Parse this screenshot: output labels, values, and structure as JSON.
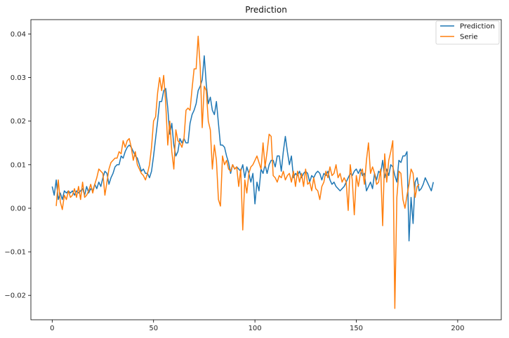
{
  "chart_data": {
    "type": "line",
    "title": "Prediction",
    "xlabel": "",
    "ylabel": "",
    "xlim": [
      -10.5,
      221.5
    ],
    "ylim": [
      -0.0256,
      0.0433
    ],
    "xticks": [
      0,
      50,
      100,
      150,
      200
    ],
    "yticks": [
      -0.02,
      -0.01,
      0.0,
      0.01,
      0.02,
      0.03,
      0.04
    ],
    "xtick_labels": [
      "0",
      "50",
      "100",
      "150",
      "200"
    ],
    "ytick_labels": [
      "−0.02",
      "−0.01",
      "0.00",
      "0.01",
      "0.02",
      "0.03",
      "0.04"
    ],
    "grid": false,
    "legend_position": "top-right",
    "series": [
      {
        "name": "Prediction",
        "color": "#1f77b4",
        "x_start": 0,
        "values": [
          0.005,
          0.003,
          0.0065,
          0.002,
          0.0035,
          0.002,
          0.004,
          0.0035,
          0.004,
          0.0035,
          0.004,
          0.003,
          0.004,
          0.0035,
          0.004,
          0.0045,
          0.003,
          0.005,
          0.0035,
          0.0045,
          0.004,
          0.0055,
          0.0045,
          0.006,
          0.005,
          0.007,
          0.0085,
          0.008,
          0.0055,
          0.007,
          0.008,
          0.0095,
          0.01,
          0.01,
          0.012,
          0.0115,
          0.013,
          0.014,
          0.0145,
          0.014,
          0.013,
          0.012,
          0.0115,
          0.01,
          0.0085,
          0.009,
          0.008,
          0.008,
          0.007,
          0.0085,
          0.012,
          0.016,
          0.02,
          0.0245,
          0.0245,
          0.027,
          0.0275,
          0.023,
          0.017,
          0.0195,
          0.0145,
          0.012,
          0.013,
          0.016,
          0.015,
          0.016,
          0.015,
          0.015,
          0.0195,
          0.0215,
          0.0225,
          0.024,
          0.027,
          0.028,
          0.0295,
          0.035,
          0.0285,
          0.024,
          0.0255,
          0.0225,
          0.0215,
          0.0245,
          0.0195,
          0.0145,
          0.0145,
          0.014,
          0.012,
          0.0105,
          0.008,
          0.01,
          0.009,
          0.0095,
          0.009,
          0.0085,
          0.01,
          0.007,
          0.0095,
          0.008,
          0.006,
          0.008,
          0.001,
          0.006,
          0.004,
          0.009,
          0.008,
          0.01,
          0.008,
          0.01,
          0.011,
          0.011,
          0.0095,
          0.012,
          0.012,
          0.0085,
          0.013,
          0.0165,
          0.013,
          0.01,
          0.012,
          0.007,
          0.008,
          0.0075,
          0.0085,
          0.007,
          0.008,
          0.0085,
          0.008,
          0.006,
          0.0075,
          0.007,
          0.008,
          0.0085,
          0.008,
          0.0065,
          0.008,
          0.0075,
          0.0085,
          0.0065,
          0.0055,
          0.006,
          0.005,
          0.0045,
          0.004,
          0.0045,
          0.005,
          0.006,
          0.007,
          0.008,
          0.0075,
          0.0085,
          0.009,
          0.008,
          0.009,
          0.0075,
          0.008,
          0.004,
          0.005,
          0.006,
          0.0045,
          0.008,
          0.0065,
          0.0085,
          0.008,
          0.011,
          0.007,
          0.009,
          0.0075,
          0.01,
          0.0095,
          0.0075,
          0.006,
          0.011,
          0.0105,
          0.012,
          0.012,
          0.013,
          -0.0075,
          0.0025,
          -0.0035,
          0.006,
          0.007,
          0.004,
          0.0045,
          0.0055,
          0.007,
          0.006,
          0.005,
          0.004,
          0.006
        ]
      },
      {
        "name": "Serie",
        "color": "#ff7f0e",
        "x_start": 2,
        "values": [
          0.0005,
          0.0065,
          0.0015,
          -0.0003,
          0.003,
          0.002,
          0.004,
          0.0025,
          0.003,
          0.0045,
          0.0025,
          0.005,
          0.002,
          0.006,
          0.0025,
          0.003,
          0.004,
          0.0055,
          0.0035,
          0.0055,
          0.007,
          0.009,
          0.0085,
          0.008,
          0.003,
          0.006,
          0.009,
          0.0105,
          0.011,
          0.0115,
          0.0115,
          0.013,
          0.0125,
          0.0155,
          0.014,
          0.0155,
          0.016,
          0.014,
          0.011,
          0.013,
          0.01,
          0.009,
          0.008,
          0.0075,
          0.0065,
          0.008,
          0.01,
          0.014,
          0.02,
          0.021,
          0.0265,
          0.03,
          0.027,
          0.0305,
          0.024,
          0.0145,
          0.02,
          0.013,
          0.009,
          0.018,
          0.0155,
          0.015,
          0.014,
          0.016,
          0.0225,
          0.023,
          0.0225,
          0.0275,
          0.032,
          0.032,
          0.0395,
          0.0325,
          0.0185,
          0.028,
          0.027,
          0.02,
          0.018,
          0.009,
          0.0145,
          0.011,
          0.002,
          0.0005,
          0.012,
          0.01,
          0.011,
          0.009,
          0.0085,
          0.01,
          0.009,
          0.0095,
          0.005,
          0.009,
          -0.005,
          0.0065,
          0.0035,
          0.008,
          0.0095,
          0.01,
          0.011,
          0.012,
          0.0105,
          0.009,
          0.015,
          0.0095,
          0.013,
          0.017,
          0.0165,
          0.0075,
          0.007,
          0.006,
          0.0075,
          0.007,
          0.0085,
          0.0065,
          0.0075,
          0.008,
          0.006,
          0.0085,
          0.005,
          0.0085,
          0.006,
          0.008,
          0.005,
          0.009,
          0.0055,
          0.006,
          0.004,
          0.007,
          0.0045,
          0.004,
          0.002,
          0.005,
          0.006,
          0.0085,
          0.007,
          0.0095,
          0.0075,
          0.008,
          0.01,
          0.007,
          0.008,
          0.006,
          0.007,
          0.006,
          -0.0005,
          0.01,
          0.0065,
          -0.0015,
          0.0075,
          0.005,
          0.008,
          0.009,
          0.0055,
          0.011,
          0.015,
          0.008,
          0.0095,
          0.008,
          0.0055,
          0.006,
          0.009,
          -0.004,
          0.0125,
          0.006,
          0.011,
          0.013,
          0.0155,
          -0.023,
          0.0025,
          0.0085,
          0.008,
          0.002,
          0.0,
          0.003,
          0.0055,
          0.009,
          0.008,
          0.0025,
          0.005,
          0.0055
        ]
      }
    ]
  }
}
